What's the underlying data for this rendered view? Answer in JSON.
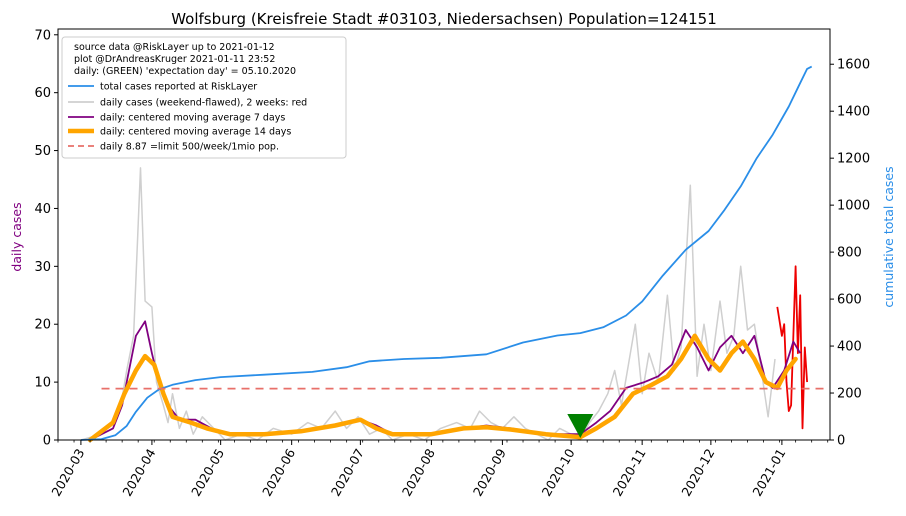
{
  "chart_data": {
    "type": "line",
    "title": "Wolfsburg (Kreisfreie Stadt #03103, Niedersachsen) Population=124151",
    "ylabel_left": "daily cases",
    "ylabel_right": "cumulative total cases",
    "ylim_left": [
      0,
      71
    ],
    "ylim_right": [
      0,
      1750
    ],
    "yticks_left": [
      0,
      10,
      20,
      30,
      40,
      50,
      60,
      70
    ],
    "yticks_right": [
      0,
      200,
      400,
      600,
      800,
      1000,
      1200,
      1400,
      1600
    ],
    "x_range": [
      "2020-02-20",
      "2021-01-22"
    ],
    "xticks": [
      "2020-03",
      "2020-04",
      "2020-05",
      "2020-06",
      "2020-07",
      "2020-08",
      "2020-09",
      "2020-10",
      "2020-11",
      "2020-12",
      "2021-01"
    ],
    "legend_placement": "top-left",
    "legend_info": [
      "source data @RiskLayer up to 2021-01-12",
      "plot @DrAndreasKruger 2021-01-11 23:52",
      "daily: (GREEN) 'expectation day' = 05.10.2020"
    ],
    "legend": [
      {
        "label": "total cases reported at RiskLayer",
        "color": "#2a8ee8",
        "style": "line"
      },
      {
        "label": "daily cases (weekend-flawed), 2 weeks: red",
        "color": "#cfcfcf",
        "style": "line"
      },
      {
        "label": "daily: centered moving average 7 days",
        "color": "#800080",
        "style": "line"
      },
      {
        "label": "daily: centered moving average 14 days",
        "color": "#ffa500",
        "style": "thick"
      },
      {
        "label": "daily 8.87 =limit 500/week/1mio pop.",
        "color": "#e8706a",
        "style": "dashed"
      }
    ],
    "limit_line": {
      "value": 8.87,
      "x_start": "2020-03-10",
      "x_end": "2021-01-20"
    },
    "expectation_day": "2020-10-05",
    "series_total": [
      [
        "2020-03-01",
        0
      ],
      [
        "2020-03-10",
        4
      ],
      [
        "2020-03-16",
        20
      ],
      [
        "2020-03-21",
        60
      ],
      [
        "2020-03-25",
        120
      ],
      [
        "2020-03-30",
        180
      ],
      [
        "2020-04-04",
        215
      ],
      [
        "2020-04-10",
        235
      ],
      [
        "2020-04-20",
        255
      ],
      [
        "2020-05-01",
        268
      ],
      [
        "2020-05-20",
        278
      ],
      [
        "2020-06-10",
        290
      ],
      [
        "2020-06-25",
        310
      ],
      [
        "2020-07-05",
        335
      ],
      [
        "2020-07-20",
        345
      ],
      [
        "2020-08-05",
        350
      ],
      [
        "2020-08-25",
        365
      ],
      [
        "2020-09-10",
        415
      ],
      [
        "2020-09-25",
        445
      ],
      [
        "2020-10-05",
        455
      ],
      [
        "2020-10-15",
        480
      ],
      [
        "2020-10-25",
        530
      ],
      [
        "2020-11-01",
        590
      ],
      [
        "2020-11-10",
        700
      ],
      [
        "2020-11-20",
        810
      ],
      [
        "2020-11-30",
        890
      ],
      [
        "2020-12-07",
        980
      ],
      [
        "2020-12-14",
        1080
      ],
      [
        "2020-12-21",
        1200
      ],
      [
        "2020-12-28",
        1300
      ],
      [
        "2021-01-04",
        1420
      ],
      [
        "2021-01-08",
        1500
      ],
      [
        "2021-01-12",
        1580
      ],
      [
        "2021-01-14",
        1590
      ]
    ],
    "series_daily": [
      [
        "2020-03-01",
        0
      ],
      [
        "2020-03-10",
        1
      ],
      [
        "2020-03-15",
        3
      ],
      [
        "2020-03-18",
        5
      ],
      [
        "2020-03-21",
        12
      ],
      [
        "2020-03-24",
        18
      ],
      [
        "2020-03-27",
        47
      ],
      [
        "2020-03-29",
        24
      ],
      [
        "2020-04-01",
        23
      ],
      [
        "2020-04-03",
        10
      ],
      [
        "2020-04-06",
        6
      ],
      [
        "2020-04-08",
        3
      ],
      [
        "2020-04-10",
        8
      ],
      [
        "2020-04-13",
        2
      ],
      [
        "2020-04-16",
        5
      ],
      [
        "2020-04-19",
        1
      ],
      [
        "2020-04-23",
        4
      ],
      [
        "2020-04-28",
        2
      ],
      [
        "2020-05-03",
        0
      ],
      [
        "2020-05-10",
        1
      ],
      [
        "2020-05-17",
        0
      ],
      [
        "2020-05-24",
        2
      ],
      [
        "2020-06-01",
        1
      ],
      [
        "2020-06-08",
        3
      ],
      [
        "2020-06-14",
        2
      ],
      [
        "2020-06-20",
        5
      ],
      [
        "2020-06-25",
        2
      ],
      [
        "2020-06-30",
        4
      ],
      [
        "2020-07-05",
        1
      ],
      [
        "2020-07-10",
        2
      ],
      [
        "2020-07-15",
        0
      ],
      [
        "2020-07-22",
        1
      ],
      [
        "2020-07-29",
        0
      ],
      [
        "2020-08-05",
        2
      ],
      [
        "2020-08-12",
        3
      ],
      [
        "2020-08-18",
        2
      ],
      [
        "2020-08-22",
        5
      ],
      [
        "2020-08-27",
        3
      ],
      [
        "2020-09-01",
        2
      ],
      [
        "2020-09-06",
        4
      ],
      [
        "2020-09-11",
        2
      ],
      [
        "2020-09-16",
        1
      ],
      [
        "2020-09-21",
        0
      ],
      [
        "2020-09-26",
        2
      ],
      [
        "2020-10-01",
        1
      ],
      [
        "2020-10-05",
        0
      ],
      [
        "2020-10-09",
        3
      ],
      [
        "2020-10-13",
        5
      ],
      [
        "2020-10-17",
        8
      ],
      [
        "2020-10-20",
        12
      ],
      [
        "2020-10-23",
        6
      ],
      [
        "2020-10-26",
        13
      ],
      [
        "2020-10-29",
        20
      ],
      [
        "2020-11-01",
        8
      ],
      [
        "2020-11-04",
        15
      ],
      [
        "2020-11-08",
        10
      ],
      [
        "2020-11-12",
        25
      ],
      [
        "2020-11-15",
        12
      ],
      [
        "2020-11-18",
        16
      ],
      [
        "2020-11-22",
        44
      ],
      [
        "2020-11-25",
        11
      ],
      [
        "2020-11-28",
        20
      ],
      [
        "2020-12-01",
        12
      ],
      [
        "2020-12-05",
        24
      ],
      [
        "2020-12-08",
        15
      ],
      [
        "2020-12-11",
        18
      ],
      [
        "2020-12-14",
        30
      ],
      [
        "2020-12-17",
        19
      ],
      [
        "2020-12-20",
        20
      ],
      [
        "2020-12-23",
        12
      ],
      [
        "2020-12-26",
        4
      ],
      [
        "2020-12-29",
        14
      ]
    ],
    "series_daily_recent": [
      [
        "2020-12-30",
        23
      ],
      [
        "2021-01-01",
        18
      ],
      [
        "2021-01-02",
        20
      ],
      [
        "2021-01-03",
        10
      ],
      [
        "2021-01-04",
        5
      ],
      [
        "2021-01-05",
        6
      ],
      [
        "2021-01-07",
        30
      ],
      [
        "2021-01-08",
        15
      ],
      [
        "2021-01-09",
        25
      ],
      [
        "2021-01-10",
        2
      ],
      [
        "2021-01-11",
        16
      ],
      [
        "2021-01-12",
        10
      ]
    ],
    "series_ma7": [
      [
        "2020-03-05",
        0
      ],
      [
        "2020-03-15",
        2
      ],
      [
        "2020-03-19",
        6
      ],
      [
        "2020-03-22",
        12
      ],
      [
        "2020-03-25",
        18
      ],
      [
        "2020-03-29",
        20.5
      ],
      [
        "2020-04-01",
        15
      ],
      [
        "2020-04-04",
        10
      ],
      [
        "2020-04-08",
        6
      ],
      [
        "2020-04-13",
        3.5
      ],
      [
        "2020-04-20",
        3.5
      ],
      [
        "2020-04-27",
        2
      ],
      [
        "2020-05-04",
        1
      ],
      [
        "2020-05-20",
        1
      ],
      [
        "2020-06-05",
        1.5
      ],
      [
        "2020-06-20",
        2.5
      ],
      [
        "2020-07-01",
        3.5
      ],
      [
        "2020-07-08",
        2.5
      ],
      [
        "2020-07-15",
        1
      ],
      [
        "2020-08-01",
        1
      ],
      [
        "2020-08-15",
        2
      ],
      [
        "2020-08-25",
        2.5
      ],
      [
        "2020-09-05",
        2
      ],
      [
        "2020-09-20",
        1
      ],
      [
        "2020-10-05",
        1
      ],
      [
        "2020-10-12",
        3
      ],
      [
        "2020-10-18",
        5
      ],
      [
        "2020-10-25",
        9
      ],
      [
        "2020-11-02",
        10
      ],
      [
        "2020-11-08",
        11
      ],
      [
        "2020-11-14",
        13
      ],
      [
        "2020-11-20",
        19
      ],
      [
        "2020-11-25",
        16
      ],
      [
        "2020-11-30",
        12
      ],
      [
        "2020-12-05",
        16
      ],
      [
        "2020-12-10",
        18
      ],
      [
        "2020-12-15",
        15
      ],
      [
        "2020-12-20",
        18
      ],
      [
        "2020-12-25",
        10
      ],
      [
        "2020-12-28",
        9
      ],
      [
        "2021-01-02",
        12
      ],
      [
        "2021-01-06",
        17
      ],
      [
        "2021-01-09",
        15
      ]
    ],
    "series_ma14": [
      [
        "2020-03-05",
        0
      ],
      [
        "2020-03-15",
        3
      ],
      [
        "2020-03-20",
        8
      ],
      [
        "2020-03-25",
        12
      ],
      [
        "2020-03-29",
        14.5
      ],
      [
        "2020-04-02",
        13
      ],
      [
        "2020-04-06",
        8
      ],
      [
        "2020-04-10",
        4
      ],
      [
        "2020-04-18",
        3
      ],
      [
        "2020-04-25",
        2
      ],
      [
        "2020-05-05",
        1
      ],
      [
        "2020-05-20",
        1
      ],
      [
        "2020-06-05",
        1.5
      ],
      [
        "2020-06-20",
        2.5
      ],
      [
        "2020-07-01",
        3.5
      ],
      [
        "2020-07-08",
        2
      ],
      [
        "2020-07-15",
        1
      ],
      [
        "2020-08-01",
        1
      ],
      [
        "2020-08-15",
        2
      ],
      [
        "2020-08-25",
        2.2
      ],
      [
        "2020-09-05",
        1.8
      ],
      [
        "2020-09-20",
        1
      ],
      [
        "2020-10-05",
        0.5
      ],
      [
        "2020-10-12",
        2
      ],
      [
        "2020-10-20",
        4
      ],
      [
        "2020-10-28",
        8
      ],
      [
        "2020-11-05",
        9.5
      ],
      [
        "2020-11-12",
        11
      ],
      [
        "2020-11-18",
        14
      ],
      [
        "2020-11-24",
        18
      ],
      [
        "2020-11-30",
        14
      ],
      [
        "2020-12-05",
        12
      ],
      [
        "2020-12-10",
        15
      ],
      [
        "2020-12-15",
        17
      ],
      [
        "2020-12-20",
        14
      ],
      [
        "2020-12-25",
        10
      ],
      [
        "2020-12-30",
        9
      ],
      [
        "2021-01-03",
        12
      ],
      [
        "2021-01-07",
        14
      ]
    ]
  }
}
